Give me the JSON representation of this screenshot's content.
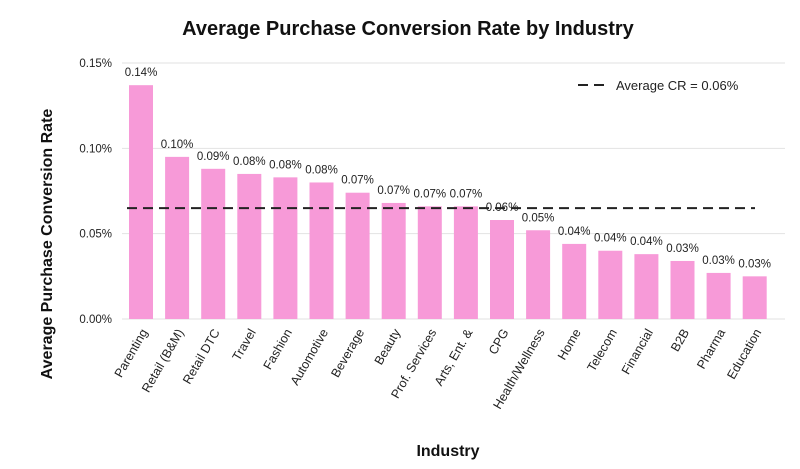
{
  "chart_data": {
    "type": "bar",
    "title": "Average Purchase Conversion Rate by Industry",
    "xlabel": "Industry",
    "ylabel": "Average Purchase Conversion Rate",
    "ylim": [
      0,
      0.15
    ],
    "yticks": [
      {
        "value": 0,
        "label": "0.00%"
      },
      {
        "value": 0.05,
        "label": "0.05%"
      },
      {
        "value": 0.1,
        "label": "0.10%"
      },
      {
        "value": 0.15,
        "label": "0.15%"
      }
    ],
    "grid": true,
    "bar_color": "#f79ad8",
    "categories": [
      "Parenting",
      "Retail (B&M)",
      "Retail DTC",
      "Travel",
      "Fashion",
      "Automotive",
      "Beverage",
      "Beauty",
      "Prof. Services",
      "Arts, Ent. &",
      "CPG",
      "Health/Wellness",
      "Home",
      "Telecom",
      "Financial",
      "B2B",
      "Pharma",
      "Education"
    ],
    "values": [
      0.137,
      0.095,
      0.088,
      0.085,
      0.083,
      0.08,
      0.074,
      0.068,
      0.066,
      0.066,
      0.058,
      0.052,
      0.044,
      0.04,
      0.038,
      0.034,
      0.027,
      0.025
    ],
    "data_labels": [
      "0.14%",
      "0.10%",
      "0.09%",
      "0.08%",
      "0.08%",
      "0.08%",
      "0.07%",
      "0.07%",
      "0.07%",
      "0.07%",
      "0.06%",
      "0.05%",
      "0.04%",
      "0.04%",
      "0.04%",
      "0.03%",
      "0.03%",
      "0.03%"
    ],
    "reference_line": {
      "label": "Average CR = 0.06%",
      "value": 0.065,
      "style": "dashed",
      "color": "#222222"
    },
    "legend_position": "top-right"
  }
}
